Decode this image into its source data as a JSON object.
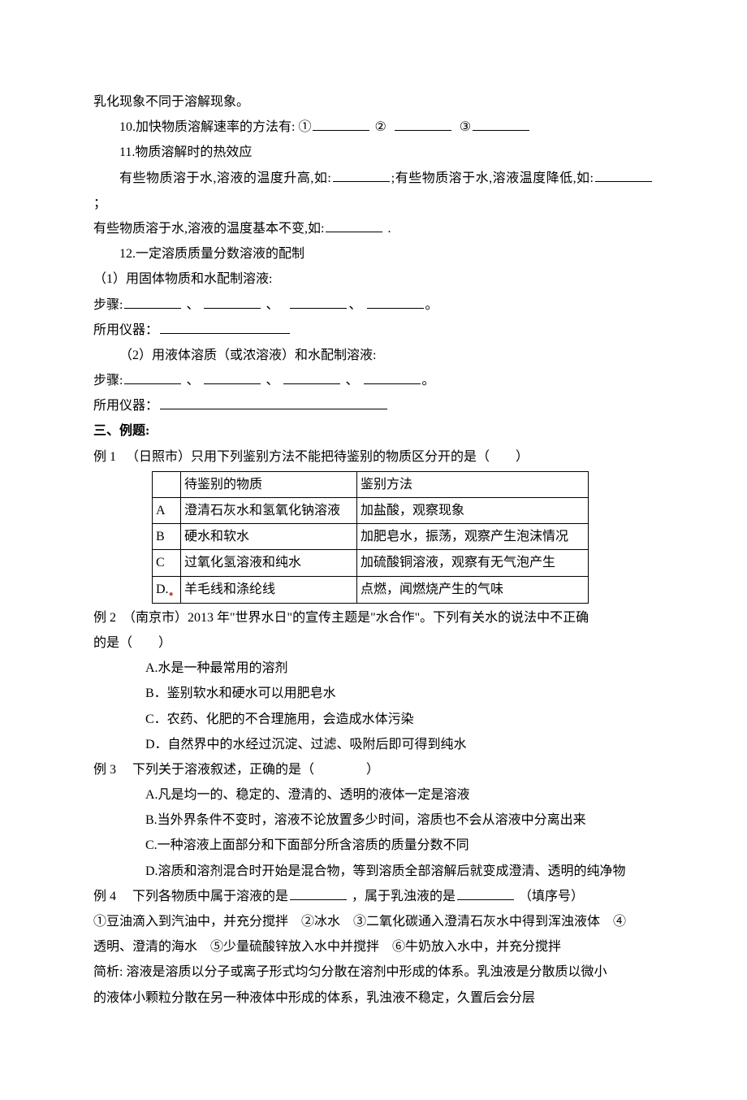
{
  "top_line": "乳化现象不同于溶解现象。",
  "item10": {
    "text_a": "10.加快物质溶解速率的方法有: ①",
    "text_b": "②",
    "text_c": "③"
  },
  "item11": {
    "title": "11.物质溶解时的热效应",
    "line1_a": "有些物质溶于水,溶液的温度升高,如:",
    "line1_b": ";有些物质溶于水,溶液温度降低,如:",
    "line1_c": " ；",
    "line2_a": "有些物质溶于水,溶液的温度基本不变,如:",
    "line2_b": " ."
  },
  "item12": {
    "title": "12.一定溶质质量分数溶液的配制",
    "p1": "（1）用固体物质和水配制溶液:",
    "steps_label": "步骤:",
    "sep": " 、 ",
    "period": "。",
    "instruments_label": "所用仪器：",
    "p2": "（2）用液体溶质（或浓溶液）和水配制溶液:"
  },
  "section3_title": "三、例题:",
  "ex1": {
    "stem": "例 1 　（日照市）只用下列鉴别方法不能把待鉴别的物质区分开的是（　　）",
    "table": {
      "header": [
        "",
        "待鉴别的物质",
        "鉴别方法"
      ],
      "rows": [
        [
          "A",
          "澄清石灰水和氢氧化钠溶液",
          "加盐酸，观察现象"
        ],
        [
          "B",
          "硬水和软水",
          "加肥皂水，振荡，观察产生泡沫情况"
        ],
        [
          "C",
          "过氧化氢溶液和纯水",
          "加硫酸铜溶液，观察有无气泡产生"
        ],
        [
          "D.",
          "羊毛线和涤纶线",
          "点燃，闻燃烧产生的气味"
        ]
      ]
    }
  },
  "ex2": {
    "stem_a": "例 2　（南京市）2013 年\"世界水日\"的宣传主题是\"水合作\"。下列有关水的说法中不正确",
    "stem_b": "的是（　　）",
    "opts": [
      "A.水是一种最常用的溶剂",
      "B．鉴别软水和硬水可以用肥皂水",
      "C．农药、化肥的不合理施用，会造成水体污染",
      "D．自然界中的水经过沉淀、过滤、吸附后即可得到纯水"
    ]
  },
  "ex3": {
    "stem": "例 3　 下列关于溶液叙述，正确的是（　　　　）",
    "opts": [
      "A.凡是均一的、稳定的、澄清的、透明的液体一定是溶液",
      "B.当外界条件不变时，溶液不论放置多少时间，溶质也不会从溶液中分离出来",
      "C.一种溶液上面部分和下面部分所含溶质的质量分数不同",
      "D.溶质和溶剂混合时开始是混合物，等到溶质全部溶解后就变成澄清、透明的纯净物"
    ]
  },
  "ex4": {
    "stem_a": "例 4　  下列各物质中属于溶液的是",
    "stem_b": "，属于乳浊液的是",
    "stem_c": "（填序号）",
    "line2": "①豆油滴入到汽油中，并充分搅拌　②冰水　③二氧化碳通入澄清石灰水中得到浑浊液体　④",
    "line3": "透明、澄清的海水　⑤少量硫酸锌放入水中并搅拌　⑥牛奶放入水中，并充分搅拌",
    "analysis1": "简析: 溶液是溶质以分子或离子形式均匀分散在溶剂中形成的体系。乳浊液是分散质以微小",
    "analysis2": "的液体小颗粒分散在另一种液体中形成的体系，乳浊液不稳定，久置后会分层"
  }
}
